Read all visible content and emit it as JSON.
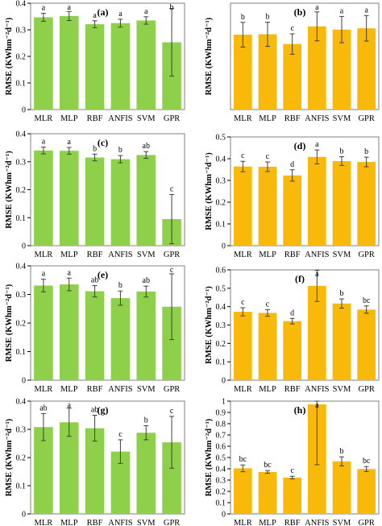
{
  "colors": {
    "green": "#8fd04b",
    "yellow": "#f8b90b",
    "axis": "#000000",
    "error": "#404040"
  },
  "chart_data": [
    {
      "panel": "(a)",
      "type": "bar",
      "color": "green",
      "ylabel": "RMSE (KWhm⁻²d⁻¹)",
      "ylim": [
        0,
        0.4
      ],
      "yticks": [
        "0",
        "0.1",
        "0.2",
        "0.3",
        "0.4"
      ],
      "ytick_values": [
        0,
        0.1,
        0.2,
        0.3,
        0.4
      ],
      "categories": [
        "MLR",
        "MLP",
        "RBF",
        "ANFIS",
        "SVM",
        "GPR"
      ],
      "values": [
        0.347,
        0.352,
        0.321,
        0.325,
        0.335,
        0.253
      ],
      "errors": [
        0.015,
        0.017,
        0.013,
        0.015,
        0.014,
        0.127
      ],
      "letters": [
        "a",
        "a",
        "a",
        "a",
        "a",
        "b"
      ]
    },
    {
      "panel": "(b)",
      "type": "bar",
      "color": "yellow",
      "ylabel": "RMSE (KWhm⁻²d⁻¹)",
      "ylim": [
        0,
        0.5
      ],
      "yticks": [],
      "ytick_values": [],
      "categories": [
        "MLR",
        "MLP",
        "RBF",
        "ANFIS",
        "SVM",
        "GPR"
      ],
      "values": [
        0.352,
        0.354,
        0.308,
        0.391,
        0.376,
        0.382
      ],
      "errors": [
        0.058,
        0.057,
        0.048,
        0.068,
        0.062,
        0.06
      ],
      "letters": [
        "b",
        "b",
        "c",
        "a",
        "a",
        "a"
      ]
    },
    {
      "panel": "(c)",
      "type": "bar",
      "color": "green",
      "ylabel": "RMSE (KWhm⁻²d⁻¹)",
      "ylim": [
        0,
        0.4
      ],
      "yticks": [
        "0",
        "0.1",
        "0.2",
        "0.3",
        "0.4"
      ],
      "ytick_values": [
        0,
        0.1,
        0.2,
        0.3,
        0.4
      ],
      "categories": [
        "MLR",
        "MLP",
        "RBF",
        "ANFIS",
        "SVM",
        "GPR"
      ],
      "values": [
        0.34,
        0.339,
        0.315,
        0.309,
        0.324,
        0.095
      ],
      "errors": [
        0.012,
        0.012,
        0.012,
        0.013,
        0.012,
        0.088
      ],
      "letters": [
        "a",
        "a",
        "b",
        "b",
        "ab",
        "c"
      ]
    },
    {
      "panel": "(d)",
      "type": "bar",
      "color": "yellow",
      "ylabel": "RMSE (KWhm⁻²d⁻¹)",
      "ylim": [
        0,
        0.5
      ],
      "yticks": [
        "0",
        "0.1",
        "0.2",
        "0.3",
        "0.4",
        "0.5"
      ],
      "ytick_values": [
        0,
        0.1,
        0.2,
        0.3,
        0.4,
        0.5
      ],
      "categories": [
        "MLR",
        "MLP",
        "RBF",
        "ANFIS",
        "SVM",
        "GPR"
      ],
      "values": [
        0.364,
        0.363,
        0.323,
        0.408,
        0.389,
        0.385
      ],
      "errors": [
        0.024,
        0.022,
        0.026,
        0.032,
        0.02,
        0.022
      ],
      "letters": [
        "c",
        "c",
        "d",
        "a",
        "b",
        "b"
      ]
    },
    {
      "panel": "(e)",
      "type": "bar",
      "color": "green",
      "ylabel": "RMSE (KWhm⁻²d⁻¹)",
      "ylim": [
        0,
        0.4
      ],
      "yticks": [
        "0",
        "0.1",
        "0.2",
        "0.3",
        "0.4"
      ],
      "ytick_values": [
        0,
        0.1,
        0.2,
        0.3,
        0.4
      ],
      "categories": [
        "MLR",
        "MLP",
        "RBF",
        "ANFIS",
        "SVM",
        "GPR"
      ],
      "values": [
        0.331,
        0.335,
        0.311,
        0.287,
        0.31,
        0.257
      ],
      "errors": [
        0.022,
        0.022,
        0.02,
        0.025,
        0.019,
        0.115
      ],
      "letters": [
        "a",
        "a",
        "ab",
        "b",
        "ab",
        "c"
      ]
    },
    {
      "panel": "(f)",
      "type": "bar",
      "color": "yellow",
      "ylabel": "RMSE (KWhm⁻²d⁻¹)",
      "ylim": [
        0,
        0.6
      ],
      "yticks": [
        "0",
        "0.1",
        "0.2",
        "0.3",
        "0.4",
        "0.5",
        "0.6"
      ],
      "ytick_values": [
        0,
        0.1,
        0.2,
        0.3,
        0.4,
        0.5,
        0.6
      ],
      "categories": [
        "MLR",
        "MLP",
        "RBF",
        "ANFIS",
        "SVM",
        "GPR"
      ],
      "values": [
        0.372,
        0.366,
        0.321,
        0.513,
        0.417,
        0.384
      ],
      "errors": [
        0.022,
        0.018,
        0.015,
        0.085,
        0.025,
        0.02
      ],
      "letters": [
        "c",
        "c",
        "d",
        "a",
        "b",
        "bc"
      ]
    },
    {
      "panel": "(g)",
      "type": "bar",
      "color": "green",
      "ylabel": "RMSE (KWhm⁻²d⁻¹)",
      "ylim": [
        0,
        0.4
      ],
      "yticks": [
        "0",
        "0.1",
        "0.2",
        "0.3",
        "0.4"
      ],
      "ytick_values": [
        0,
        0.1,
        0.2,
        0.3,
        0.4
      ],
      "categories": [
        "MLR",
        "MLP",
        "RBF",
        "ANFIS",
        "SVM",
        "GPR"
      ],
      "values": [
        0.308,
        0.325,
        0.304,
        0.221,
        0.288,
        0.254
      ],
      "errors": [
        0.048,
        0.05,
        0.046,
        0.042,
        0.025,
        0.092
      ],
      "letters": [
        "ab",
        "a",
        "ab",
        "c",
        "b",
        "c"
      ]
    },
    {
      "panel": "(h)",
      "type": "bar",
      "color": "yellow",
      "ylabel": "RMSE (KWhm⁻²d⁻¹)",
      "ylim": [
        0,
        1
      ],
      "yticks": [
        "0",
        "0.1",
        "0.2",
        "0.3",
        "0.4",
        "0.5",
        "0.6",
        "0.7",
        "0.8",
        "0.9",
        "1"
      ],
      "ytick_values": [
        0,
        0.1,
        0.2,
        0.3,
        0.4,
        0.5,
        0.6,
        0.7,
        0.8,
        0.9,
        1
      ],
      "categories": [
        "MLR",
        "MLP",
        "RBF",
        "ANFIS",
        "SVM",
        "GPR"
      ],
      "values": [
        0.404,
        0.372,
        0.322,
        0.971,
        0.466,
        0.398
      ],
      "errors": [
        0.03,
        0.012,
        0.012,
        0.535,
        0.04,
        0.022
      ],
      "letters": [
        "bc",
        "bc",
        "c",
        "a",
        "b",
        "bc"
      ]
    }
  ]
}
